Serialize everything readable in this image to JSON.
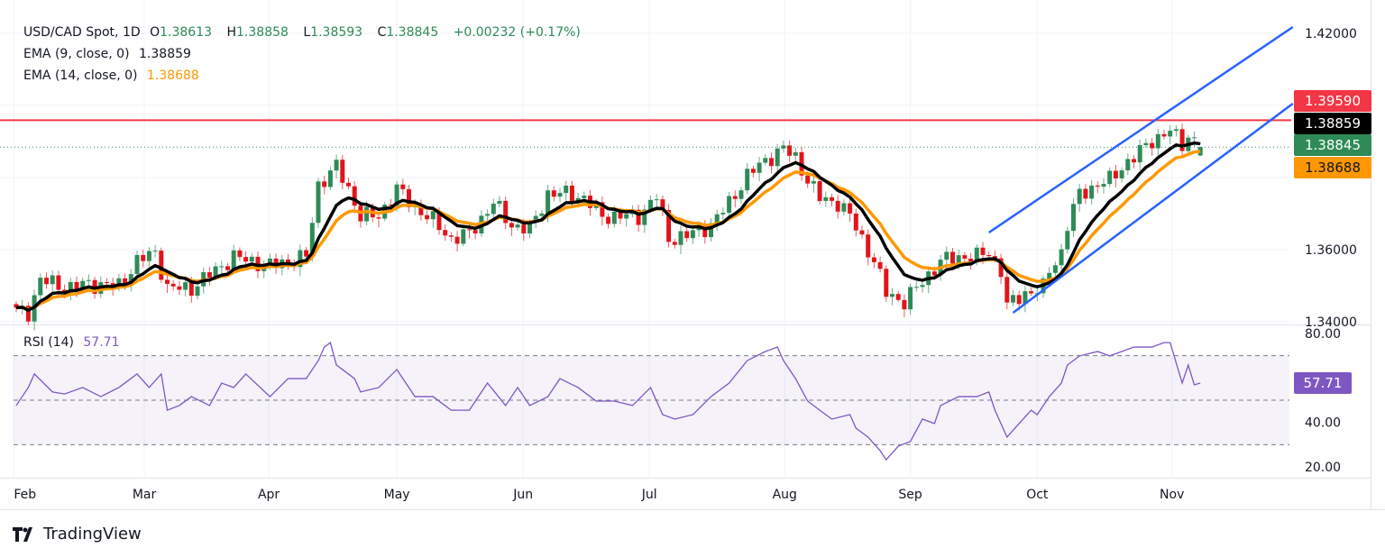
{
  "header": {
    "symbol": "USD/CAD Spot, 1D",
    "open_label": "O",
    "open": "1.38613",
    "high_label": "H",
    "high": "1.38858",
    "low_label": "L",
    "low": "1.38593",
    "close_label": "C",
    "close": "1.38845",
    "change": "+0.00232 (+0.17%)"
  },
  "ema9": {
    "label": "EMA (9, close, 0)",
    "value": "1.38859",
    "color": "#000000"
  },
  "ema14": {
    "label": "EMA (14, close, 0)",
    "value": "1.38688",
    "color": "#ff9800"
  },
  "rsi": {
    "label": "RSI (14)",
    "value": "57.71",
    "color": "#7e57c2"
  },
  "price_tags": {
    "resistance": {
      "value": "1.39590",
      "color": "#f23645"
    },
    "ema9": {
      "value": "1.38859",
      "color": "#000000"
    },
    "last": {
      "value": "1.38845",
      "color": "#2e8b57"
    },
    "ema14": {
      "value": "1.38688",
      "color": "#ff9800"
    }
  },
  "price_axis": [
    "1.42000",
    "1.36000",
    "1.34000"
  ],
  "rsi_axis": [
    "80.00",
    "40.00",
    "20.00"
  ],
  "months": [
    "Feb",
    "Mar",
    "Apr",
    "May",
    "Jun",
    "Jul",
    "Aug",
    "Sep",
    "Oct",
    "Nov"
  ],
  "brand": "TradingView",
  "chart_data": {
    "type": "candlestick",
    "title": "USD/CAD Spot, 1D",
    "ylim": [
      1.34,
      1.42
    ],
    "up_color": "#2e8b57",
    "down_color": "#e0151b",
    "last_candle": {
      "open": 1.38613,
      "high": 1.38858,
      "low": 1.38593,
      "close": 1.38845
    },
    "close_keypoints": [
      [
        0,
        1.343
      ],
      [
        2,
        1.3425
      ],
      [
        4,
        1.3518
      ],
      [
        8,
        1.3493
      ],
      [
        12,
        1.3505
      ],
      [
        17,
        1.35
      ],
      [
        20,
        1.3568
      ],
      [
        23,
        1.3593
      ],
      [
        25,
        1.3493
      ],
      [
        29,
        1.3493
      ],
      [
        33,
        1.3543
      ],
      [
        36,
        1.358
      ],
      [
        42,
        1.3555
      ],
      [
        45,
        1.3568
      ],
      [
        48,
        1.358
      ],
      [
        50,
        1.378
      ],
      [
        53,
        1.383
      ],
      [
        55,
        1.3768
      ],
      [
        57,
        1.3693
      ],
      [
        60,
        1.3693
      ],
      [
        63,
        1.3768
      ],
      [
        66,
        1.3718
      ],
      [
        69,
        1.368
      ],
      [
        72,
        1.363
      ],
      [
        75,
        1.3643
      ],
      [
        79,
        1.373
      ],
      [
        82,
        1.3668
      ],
      [
        85,
        1.3655
      ],
      [
        88,
        1.3755
      ],
      [
        91,
        1.3755
      ],
      [
        94,
        1.3743
      ],
      [
        97,
        1.3693
      ],
      [
        100,
        1.3693
      ],
      [
        103,
        1.3693
      ],
      [
        106,
        1.3748
      ],
      [
        108,
        1.363
      ],
      [
        111,
        1.3638
      ],
      [
        113,
        1.3655
      ],
      [
        115,
        1.3668
      ],
      [
        118,
        1.373
      ],
      [
        121,
        1.3805
      ],
      [
        124,
        1.3848
      ],
      [
        127,
        1.388
      ],
      [
        129,
        1.3855
      ],
      [
        131,
        1.3793
      ],
      [
        133,
        1.3743
      ],
      [
        136,
        1.373
      ],
      [
        138,
        1.3693
      ],
      [
        140,
        1.363
      ],
      [
        142,
        1.3568
      ],
      [
        144,
        1.348
      ],
      [
        147,
        1.3455
      ],
      [
        149,
        1.3493
      ],
      [
        151,
        1.353
      ],
      [
        153,
        1.3568
      ],
      [
        156,
        1.358
      ],
      [
        159,
        1.358
      ],
      [
        161,
        1.3593
      ],
      [
        163,
        1.3543
      ],
      [
        164,
        1.3443
      ],
      [
        167,
        1.348
      ],
      [
        170,
        1.3493
      ],
      [
        171,
        1.3543
      ],
      [
        173,
        1.3593
      ],
      [
        174,
        1.3668
      ],
      [
        176,
        1.3755
      ],
      [
        179,
        1.378
      ],
      [
        181,
        1.3793
      ],
      [
        183,
        1.383
      ],
      [
        185,
        1.3855
      ],
      [
        188,
        1.3905
      ],
      [
        190,
        1.3918
      ],
      [
        191,
        1.393
      ],
      [
        193,
        1.3893
      ],
      [
        194,
        1.3918
      ],
      [
        196,
        1.38845
      ]
    ],
    "resistance": 1.3959,
    "channel": {
      "upper": [
        [
          161,
          1.36475
        ],
        [
          211.3,
          1.42175
        ]
      ],
      "lower": [
        [
          165,
          1.3425
        ],
        [
          211.3,
          1.4005
        ]
      ],
      "color": "#2962ff"
    },
    "rsi": {
      "ylim": [
        20,
        80
      ],
      "levels": [
        70,
        50,
        30
      ],
      "keypoints": [
        [
          0,
          47.6
        ],
        [
          2,
          55.7
        ],
        [
          3,
          61.8
        ],
        [
          6,
          53.7
        ],
        [
          8,
          52.8
        ],
        [
          11,
          55.7
        ],
        [
          14,
          51.6
        ],
        [
          17,
          55.7
        ],
        [
          20,
          61.8
        ],
        [
          22,
          55.7
        ],
        [
          24,
          61.8
        ],
        [
          25,
          45.5
        ],
        [
          27,
          47.6
        ],
        [
          29,
          51.6
        ],
        [
          32,
          47.6
        ],
        [
          34,
          57.7
        ],
        [
          36,
          55.7
        ],
        [
          38,
          61.8
        ],
        [
          42,
          51.6
        ],
        [
          45,
          59.7
        ],
        [
          48,
          59.7
        ],
        [
          50,
          67.8
        ],
        [
          51,
          73.9
        ],
        [
          52,
          75.9
        ],
        [
          53,
          65.8
        ],
        [
          56,
          59.7
        ],
        [
          57,
          53.7
        ],
        [
          60,
          55.7
        ],
        [
          63,
          63.8
        ],
        [
          66,
          51.6
        ],
        [
          69,
          51.6
        ],
        [
          72,
          45.5
        ],
        [
          75,
          45.5
        ],
        [
          78,
          57.7
        ],
        [
          81,
          47.6
        ],
        [
          83,
          55.7
        ],
        [
          85,
          47.6
        ],
        [
          88,
          51.6
        ],
        [
          90,
          59.7
        ],
        [
          93,
          55.7
        ],
        [
          96,
          49.6
        ],
        [
          99,
          49.6
        ],
        [
          102,
          47.6
        ],
        [
          105,
          55.7
        ],
        [
          107,
          43.5
        ],
        [
          109,
          41.5
        ],
        [
          112,
          43.5
        ],
        [
          115,
          51.6
        ],
        [
          118,
          57.7
        ],
        [
          121,
          67.8
        ],
        [
          124,
          71.9
        ],
        [
          126,
          73.9
        ],
        [
          127,
          67.8
        ],
        [
          129,
          59.7
        ],
        [
          131,
          49.6
        ],
        [
          133,
          45.5
        ],
        [
          135,
          41.5
        ],
        [
          138,
          43.5
        ],
        [
          139,
          37.4
        ],
        [
          141,
          33.4
        ],
        [
          143,
          27.3
        ],
        [
          144,
          23.2
        ],
        [
          146,
          29.3
        ],
        [
          148,
          31.4
        ],
        [
          150,
          41.5
        ],
        [
          152,
          39.5
        ],
        [
          153,
          47.6
        ],
        [
          156,
          51.6
        ],
        [
          159,
          51.6
        ],
        [
          161,
          53.7
        ],
        [
          162,
          45.5
        ],
        [
          164,
          33.4
        ],
        [
          166,
          39.5
        ],
        [
          168,
          45.5
        ],
        [
          169,
          43.5
        ],
        [
          171,
          51.6
        ],
        [
          173,
          57.7
        ],
        [
          174,
          65.8
        ],
        [
          176,
          69.9
        ],
        [
          179,
          71.9
        ],
        [
          181,
          69.9
        ],
        [
          183,
          71.9
        ],
        [
          185,
          73.9
        ],
        [
          188,
          73.9
        ],
        [
          190,
          75.9
        ],
        [
          191,
          75.9
        ],
        [
          193,
          57.7
        ],
        [
          194,
          65.8
        ],
        [
          195,
          56.9
        ],
        [
          196,
          57.71
        ]
      ]
    }
  }
}
